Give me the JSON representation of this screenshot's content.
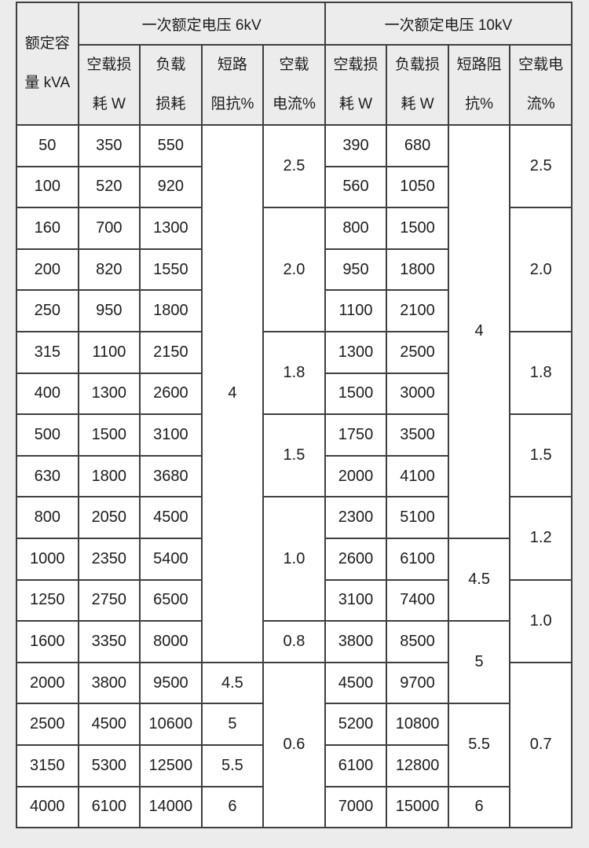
{
  "table": {
    "header": {
      "capacity": "额定容\n量 kVA",
      "group_6kv": "一次额定电压 6kV",
      "group_10kv": "一次额定电压 10kV",
      "cols": [
        "空载损\n耗 W",
        "负载\n损耗",
        "短路\n阻抗%",
        "空载\n电流%",
        "空载损\n耗 W",
        "负载损\n耗 W",
        "短路阻\n抗%",
        "空载电\n流%"
      ]
    },
    "rows": [
      [
        {
          "v": "50"
        },
        {
          "v": "350"
        },
        {
          "v": "550"
        },
        {
          "v": "4",
          "rs": 13
        },
        {
          "v": "2.5",
          "rs": 2
        },
        {
          "v": "390"
        },
        {
          "v": "680"
        },
        {
          "v": "4",
          "rs": 10
        },
        {
          "v": "2.5",
          "rs": 2
        }
      ],
      [
        {
          "v": "100"
        },
        {
          "v": "520"
        },
        {
          "v": "920"
        },
        {
          "v": "560"
        },
        {
          "v": "1050"
        }
      ],
      [
        {
          "v": "160"
        },
        {
          "v": "700"
        },
        {
          "v": "1300"
        },
        {
          "v": "2.0",
          "rs": 3
        },
        {
          "v": "800"
        },
        {
          "v": "1500"
        },
        {
          "v": "2.0",
          "rs": 3
        }
      ],
      [
        {
          "v": "200"
        },
        {
          "v": "820"
        },
        {
          "v": "1550"
        },
        {
          "v": "950"
        },
        {
          "v": "1800"
        }
      ],
      [
        {
          "v": "250"
        },
        {
          "v": "950"
        },
        {
          "v": "1800"
        },
        {
          "v": "1100"
        },
        {
          "v": "2100"
        }
      ],
      [
        {
          "v": "315"
        },
        {
          "v": "1100"
        },
        {
          "v": "2150"
        },
        {
          "v": "1.8",
          "rs": 2
        },
        {
          "v": "1300"
        },
        {
          "v": "2500"
        },
        {
          "v": "1.8",
          "rs": 2
        }
      ],
      [
        {
          "v": "400"
        },
        {
          "v": "1300"
        },
        {
          "v": "2600"
        },
        {
          "v": "1500"
        },
        {
          "v": "3000"
        }
      ],
      [
        {
          "v": "500"
        },
        {
          "v": "1500"
        },
        {
          "v": "3100"
        },
        {
          "v": "1.5",
          "rs": 2
        },
        {
          "v": "1750"
        },
        {
          "v": "3500"
        },
        {
          "v": "1.5",
          "rs": 2
        }
      ],
      [
        {
          "v": "630"
        },
        {
          "v": "1800"
        },
        {
          "v": "3680"
        },
        {
          "v": "2000"
        },
        {
          "v": "4100"
        }
      ],
      [
        {
          "v": "800"
        },
        {
          "v": "2050"
        },
        {
          "v": "4500"
        },
        {
          "v": "1.0",
          "rs": 3
        },
        {
          "v": "2300"
        },
        {
          "v": "5100"
        },
        {
          "v": "1.2",
          "rs": 2
        }
      ],
      [
        {
          "v": "1000"
        },
        {
          "v": "2350"
        },
        {
          "v": "5400"
        },
        {
          "v": "2600"
        },
        {
          "v": "6100"
        },
        {
          "v": "4.5",
          "rs": 2
        }
      ],
      [
        {
          "v": "1250"
        },
        {
          "v": "2750"
        },
        {
          "v": "6500"
        },
        {
          "v": "3100"
        },
        {
          "v": "7400"
        },
        {
          "v": "1.0",
          "rs": 2
        }
      ],
      [
        {
          "v": "1600"
        },
        {
          "v": "3350"
        },
        {
          "v": "8000"
        },
        {
          "v": "0.8"
        },
        {
          "v": "3800"
        },
        {
          "v": "8500"
        },
        {
          "v": "5",
          "rs": 2
        }
      ],
      [
        {
          "v": "2000"
        },
        {
          "v": "3800"
        },
        {
          "v": "9500"
        },
        {
          "v": "4.5"
        },
        {
          "v": "0.6",
          "rs": 4
        },
        {
          "v": "4500"
        },
        {
          "v": "9700"
        },
        {
          "v": "0.7",
          "rs": 4
        }
      ],
      [
        {
          "v": "2500"
        },
        {
          "v": "4500"
        },
        {
          "v": "10600"
        },
        {
          "v": "5"
        },
        {
          "v": "5200"
        },
        {
          "v": "10800"
        },
        {
          "v": "5.5",
          "rs": 2
        }
      ],
      [
        {
          "v": "3150"
        },
        {
          "v": "5300"
        },
        {
          "v": "12500"
        },
        {
          "v": "5.5"
        },
        {
          "v": "6100"
        },
        {
          "v": "12800"
        }
      ],
      [
        {
          "v": "4000"
        },
        {
          "v": "6100"
        },
        {
          "v": "14000"
        },
        {
          "v": "6"
        },
        {
          "v": "7000"
        },
        {
          "v": "15000"
        },
        {
          "v": "6"
        }
      ]
    ]
  }
}
